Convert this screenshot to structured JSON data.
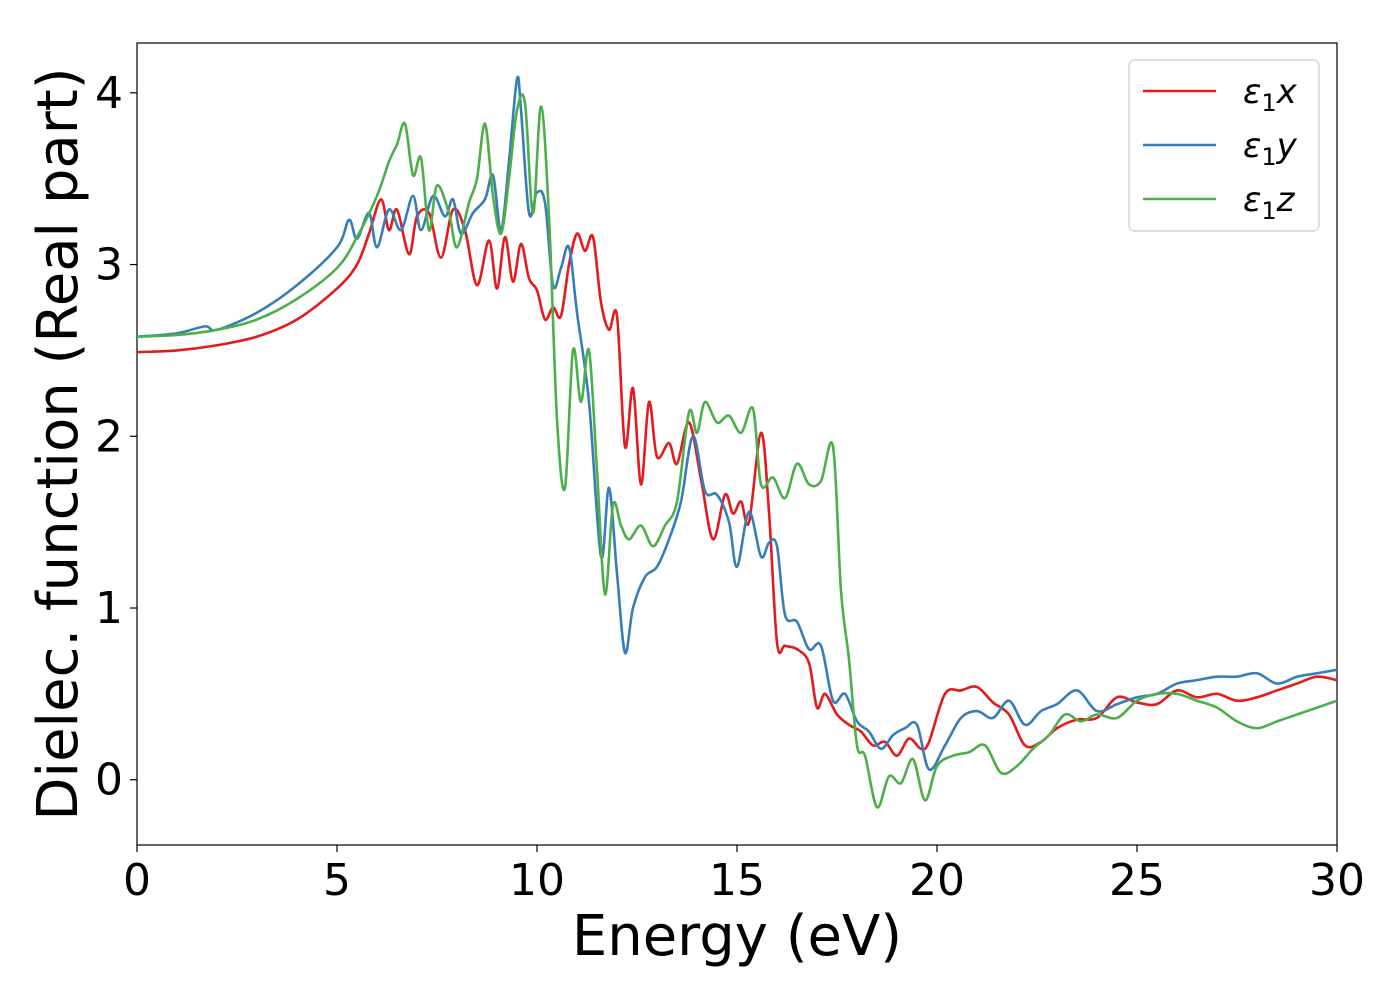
{
  "chart_data": {
    "type": "line",
    "title": "",
    "xlabel": "Energy (eV)",
    "ylabel": "Dielec. function (Real part)",
    "xlim": [
      0,
      30
    ],
    "ylim": [
      -0.38,
      4.29
    ],
    "xticks": [
      0,
      5,
      10,
      15,
      20,
      25,
      30
    ],
    "yticks": [
      0,
      1,
      2,
      3,
      4
    ],
    "grid": false,
    "legend_position": "top-right",
    "series": [
      {
        "name": "ε₁x",
        "legend_main": "ε",
        "legend_sub": "1",
        "legend_tail": "x",
        "color": "#e41a1c",
        "x": [
          0,
          1,
          2,
          3,
          4,
          5,
          5.5,
          5.8,
          6.1,
          6.3,
          6.5,
          6.8,
          7.0,
          7.3,
          7.6,
          7.9,
          8.2,
          8.5,
          8.8,
          9.0,
          9.2,
          9.4,
          9.6,
          9.8,
          10.0,
          10.2,
          10.4,
          10.6,
          10.8,
          11.0,
          11.2,
          11.4,
          11.6,
          11.8,
          12.0,
          12.2,
          12.4,
          12.6,
          12.8,
          13.0,
          13.3,
          13.5,
          13.8,
          14.1,
          14.4,
          14.7,
          14.9,
          15.1,
          15.3,
          15.6,
          15.8,
          16.0,
          16.2,
          16.5,
          16.8,
          17.0,
          17.2,
          17.5,
          17.8,
          18.1,
          18.4,
          18.7,
          19.0,
          19.3,
          19.6,
          19.8,
          20.2,
          20.6,
          21.0,
          21.4,
          21.8,
          22.2,
          22.6,
          23.0,
          23.5,
          24.0,
          24.5,
          25.0,
          25.5,
          26.0,
          26.5,
          27.0,
          27.5,
          28.0,
          28.5,
          29.0,
          29.5,
          30.0
        ],
        "values": [
          2.49,
          2.5,
          2.53,
          2.58,
          2.68,
          2.86,
          3.0,
          3.18,
          3.38,
          3.2,
          3.32,
          3.06,
          3.28,
          3.3,
          3.04,
          3.32,
          3.2,
          2.88,
          3.14,
          2.86,
          3.16,
          2.9,
          3.12,
          2.92,
          2.85,
          2.68,
          2.75,
          2.7,
          3.0,
          3.18,
          3.08,
          3.16,
          2.78,
          2.62,
          2.7,
          1.94,
          2.28,
          1.72,
          2.2,
          1.88,
          1.96,
          1.84,
          2.08,
          1.75,
          1.4,
          1.66,
          1.55,
          1.62,
          1.5,
          2.02,
          1.56,
          0.8,
          0.78,
          0.76,
          0.68,
          0.42,
          0.5,
          0.38,
          0.32,
          0.28,
          0.2,
          0.22,
          0.14,
          0.24,
          0.18,
          0.22,
          0.5,
          0.52,
          0.54,
          0.45,
          0.38,
          0.2,
          0.22,
          0.3,
          0.35,
          0.36,
          0.48,
          0.45,
          0.44,
          0.52,
          0.48,
          0.5,
          0.46,
          0.48,
          0.52,
          0.56,
          0.6,
          0.58
        ]
      },
      {
        "name": "ε₁y",
        "legend_main": "ε",
        "legend_sub": "1",
        "legend_tail": "y",
        "color": "#377eb8",
        "x": [
          0,
          1,
          1.7,
          2,
          3,
          4,
          5,
          5.3,
          5.5,
          5.8,
          6.0,
          6.3,
          6.6,
          6.9,
          7.1,
          7.4,
          7.7,
          7.9,
          8.1,
          8.4,
          8.7,
          8.9,
          9.1,
          9.3,
          9.5,
          9.6,
          9.8,
          10.0,
          10.2,
          10.4,
          10.6,
          10.8,
          11.0,
          11.3,
          11.6,
          11.8,
          12.0,
          12.2,
          12.4,
          12.7,
          13.0,
          13.3,
          13.6,
          13.9,
          14.2,
          14.5,
          14.8,
          15.0,
          15.3,
          15.6,
          15.8,
          16.0,
          16.2,
          16.5,
          16.8,
          17.1,
          17.4,
          17.7,
          18.0,
          18.3,
          18.6,
          18.9,
          19.2,
          19.5,
          19.8,
          20.2,
          20.6,
          21.0,
          21.4,
          21.8,
          22.2,
          22.6,
          23.0,
          23.5,
          24.0,
          24.5,
          25.0,
          25.5,
          26.0,
          26.5,
          27.0,
          27.5,
          28.0,
          28.5,
          29.0,
          29.5,
          30.0
        ],
        "values": [
          2.58,
          2.6,
          2.64,
          2.62,
          2.72,
          2.88,
          3.1,
          3.26,
          3.15,
          3.3,
          3.1,
          3.32,
          3.2,
          3.4,
          3.2,
          3.4,
          3.28,
          3.38,
          3.18,
          3.3,
          3.38,
          3.52,
          3.2,
          3.6,
          4.08,
          3.9,
          3.3,
          3.42,
          3.36,
          2.88,
          2.98,
          3.1,
          2.72,
          2.2,
          1.3,
          1.7,
          1.2,
          0.74,
          1.0,
          1.18,
          1.24,
          1.4,
          1.62,
          2.0,
          1.68,
          1.66,
          1.5,
          1.24,
          1.56,
          1.3,
          1.38,
          1.36,
          0.96,
          0.92,
          0.76,
          0.78,
          0.46,
          0.5,
          0.34,
          0.28,
          0.18,
          0.26,
          0.3,
          0.32,
          0.06,
          0.2,
          0.36,
          0.4,
          0.36,
          0.46,
          0.32,
          0.4,
          0.44,
          0.52,
          0.4,
          0.44,
          0.48,
          0.5,
          0.56,
          0.58,
          0.6,
          0.6,
          0.62,
          0.56,
          0.6,
          0.62,
          0.64
        ]
      },
      {
        "name": "ε₁z",
        "legend_main": "ε",
        "legend_sub": "1",
        "legend_tail": "z",
        "color": "#4daf4a",
        "x": [
          0,
          1,
          2,
          3,
          4,
          5,
          5.5,
          6.0,
          6.3,
          6.5,
          6.7,
          6.9,
          7.1,
          7.3,
          7.5,
          7.8,
          8.0,
          8.3,
          8.5,
          8.7,
          8.9,
          9.1,
          9.3,
          9.5,
          9.7,
          9.9,
          10.1,
          10.3,
          10.5,
          10.7,
          10.9,
          11.1,
          11.3,
          11.5,
          11.7,
          11.9,
          12.1,
          12.3,
          12.6,
          12.9,
          13.2,
          13.5,
          13.8,
          14.0,
          14.2,
          14.5,
          14.8,
          15.1,
          15.4,
          15.6,
          15.9,
          16.2,
          16.5,
          16.8,
          17.1,
          17.4,
          17.6,
          17.8,
          18.0,
          18.2,
          18.5,
          18.8,
          19.1,
          19.4,
          19.7,
          20.0,
          20.4,
          20.8,
          21.2,
          21.6,
          22.0,
          22.4,
          22.8,
          23.2,
          23.6,
          24.0,
          24.5,
          25.0,
          25.5,
          26.0,
          26.5,
          27.0,
          27.5,
          28.0,
          28.5,
          29.0,
          29.5,
          30.0
        ],
        "values": [
          2.58,
          2.59,
          2.62,
          2.68,
          2.8,
          2.98,
          3.16,
          3.4,
          3.6,
          3.7,
          3.82,
          3.52,
          3.62,
          3.2,
          3.46,
          3.3,
          3.1,
          3.36,
          3.5,
          3.82,
          3.4,
          3.18,
          3.5,
          3.9,
          3.94,
          3.3,
          3.92,
          3.28,
          2.1,
          1.7,
          2.5,
          2.2,
          2.5,
          1.8,
          1.08,
          1.6,
          1.48,
          1.4,
          1.48,
          1.36,
          1.48,
          1.62,
          2.14,
          2.02,
          2.2,
          2.08,
          2.12,
          2.02,
          2.16,
          1.72,
          1.76,
          1.64,
          1.84,
          1.72,
          1.74,
          1.94,
          1.1,
          0.7,
          0.2,
          0.14,
          -0.16,
          0.02,
          -0.02,
          0.12,
          -0.12,
          0.08,
          0.14,
          0.16,
          0.2,
          0.04,
          0.08,
          0.18,
          0.26,
          0.38,
          0.34,
          0.38,
          0.36,
          0.46,
          0.5,
          0.5,
          0.46,
          0.42,
          0.34,
          0.3,
          0.34,
          0.38,
          0.42,
          0.46
        ]
      }
    ]
  }
}
